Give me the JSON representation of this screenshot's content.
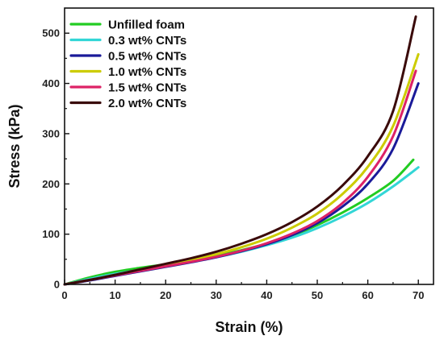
{
  "chart_data": {
    "type": "line",
    "xlabel": "Strain (%)",
    "ylabel": "Stress (kPa)",
    "xlim": [
      0,
      73
    ],
    "ylim": [
      0,
      550
    ],
    "xticks": [
      0,
      10,
      20,
      30,
      40,
      50,
      60,
      70
    ],
    "yticks": [
      0,
      100,
      200,
      300,
      400,
      500
    ],
    "grid": false,
    "legend_position": "top-left",
    "x": [
      0,
      5,
      10,
      15,
      20,
      25,
      30,
      35,
      40,
      45,
      50,
      55,
      60,
      65,
      70
    ],
    "series": [
      {
        "name": "Unfilled foam",
        "color": "#22cc22",
        "x": [
          0,
          5,
          10,
          15,
          20,
          25,
          30,
          35,
          40,
          45,
          50,
          55,
          60,
          65,
          69
        ],
        "values": [
          0,
          14,
          25,
          33,
          40,
          48,
          57,
          68,
          81,
          97,
          118,
          143,
          172,
          206,
          248
        ]
      },
      {
        "name": "0.3 wt% CNTs",
        "color": "#33d6d6",
        "x": [
          0,
          5,
          10,
          15,
          20,
          25,
          30,
          35,
          40,
          45,
          50,
          55,
          60,
          65,
          70
        ],
        "values": [
          0,
          11,
          21,
          29,
          37,
          45,
          54,
          65,
          78,
          93,
          112,
          135,
          162,
          195,
          233
        ]
      },
      {
        "name": "0.5 wt% CNTs",
        "color": "#1a1a99",
        "x": [
          0,
          5,
          10,
          15,
          20,
          25,
          30,
          35,
          40,
          45,
          50,
          55,
          60,
          65,
          70
        ],
        "values": [
          0,
          8,
          17,
          26,
          35,
          44,
          54,
          66,
          80,
          98,
          122,
          155,
          200,
          270,
          400
        ]
      },
      {
        "name": "1.0 wt% CNTs",
        "color": "#cccc00",
        "x": [
          0,
          5,
          10,
          15,
          20,
          25,
          30,
          35,
          40,
          45,
          50,
          55,
          60,
          65,
          70
        ],
        "values": [
          0,
          9,
          19,
          29,
          38,
          48,
          60,
          74,
          91,
          113,
          141,
          180,
          234,
          315,
          458
        ]
      },
      {
        "name": "1.5 wt% CNTs",
        "color": "#dd2266",
        "x": [
          0,
          5,
          10,
          15,
          20,
          25,
          30,
          35,
          40,
          45,
          50,
          55,
          60,
          65,
          69.5
        ],
        "values": [
          0,
          9,
          18,
          27,
          36,
          45,
          55,
          67,
          82,
          101,
          126,
          162,
          214,
          295,
          425
        ]
      },
      {
        "name": "2.0 wt% CNTs",
        "color": "#3a0a0a",
        "x": [
          0,
          5,
          10,
          15,
          20,
          25,
          30,
          35,
          40,
          45,
          50,
          55,
          60,
          65,
          69.5
        ],
        "values": [
          0,
          9,
          19,
          30,
          41,
          52,
          65,
          81,
          100,
          124,
          155,
          197,
          255,
          345,
          533
        ]
      }
    ]
  }
}
